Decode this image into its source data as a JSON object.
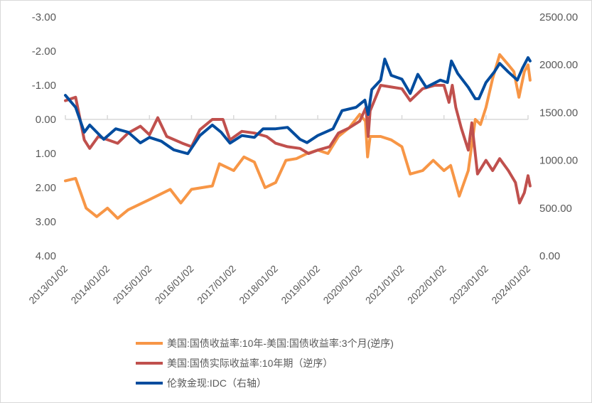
{
  "chart_data": {
    "type": "line",
    "title": "",
    "x_ticks": [
      "2013/01/02",
      "2014/01/02",
      "2015/01/02",
      "2016/01/02",
      "2017/01/02",
      "2018/01/02",
      "2019/01/02",
      "2020/01/02",
      "2021/01/02",
      "2022/01/02",
      "2023/01/02",
      "2024/01/02"
    ],
    "left_axis": {
      "ticks": [
        "-3.00",
        "-2.00",
        "-1.00",
        "0.00",
        "1.00",
        "2.00",
        "3.00",
        "4.00"
      ],
      "range": [
        -3,
        4
      ],
      "inverted": true
    },
    "right_axis": {
      "ticks": [
        "0.00",
        "500.00",
        "1000.00",
        "1500.00",
        "2000.00",
        "2500.00"
      ],
      "range": [
        0,
        2500
      ]
    },
    "grid": false,
    "legend_position": "bottom",
    "series": [
      {
        "name": "美国:国债收益率:10年-美国:国债收益率:3个月(逆序)",
        "axis": "left",
        "color": "#F79646",
        "points": [
          [
            "2013-01-02",
            1.8
          ],
          [
            "2013-04-01",
            1.73
          ],
          [
            "2013-07-01",
            2.6
          ],
          [
            "2013-10-01",
            2.85
          ],
          [
            "2014-01-02",
            2.6
          ],
          [
            "2014-04-01",
            2.9
          ],
          [
            "2014-07-01",
            2.65
          ],
          [
            "2015-01-02",
            2.35
          ],
          [
            "2015-07-01",
            2.05
          ],
          [
            "2015-10-01",
            2.45
          ],
          [
            "2016-01-02",
            2.05
          ],
          [
            "2016-07-01",
            1.95
          ],
          [
            "2016-09-01",
            1.3
          ],
          [
            "2017-01-02",
            1.5
          ],
          [
            "2017-04-01",
            1.1
          ],
          [
            "2017-07-01",
            1.25
          ],
          [
            "2017-10-01",
            2.0
          ],
          [
            "2018-01-02",
            1.85
          ],
          [
            "2018-04-01",
            1.2
          ],
          [
            "2018-07-01",
            1.15
          ],
          [
            "2018-10-01",
            1.0
          ],
          [
            "2019-01-02",
            0.9
          ],
          [
            "2019-04-01",
            1.0
          ],
          [
            "2019-07-01",
            0.5
          ],
          [
            "2019-10-01",
            0.25
          ],
          [
            "2020-01-02",
            -0.15
          ],
          [
            "2020-02-20",
            0.05
          ],
          [
            "2020-03-10",
            1.1
          ],
          [
            "2020-04-01",
            0.5
          ],
          [
            "2020-07-01",
            0.5
          ],
          [
            "2020-10-01",
            0.6
          ],
          [
            "2021-01-02",
            0.8
          ],
          [
            "2021-03-15",
            1.6
          ],
          [
            "2021-07-01",
            1.5
          ],
          [
            "2021-10-01",
            1.2
          ],
          [
            "2022-01-02",
            1.5
          ],
          [
            "2022-03-01",
            1.35
          ],
          [
            "2022-05-15",
            2.25
          ],
          [
            "2022-08-01",
            1.5
          ],
          [
            "2022-10-01",
            0.0
          ],
          [
            "2022-11-15",
            0.15
          ],
          [
            "2023-01-02",
            -0.35
          ],
          [
            "2023-03-01",
            -1.2
          ],
          [
            "2023-05-01",
            -1.9
          ],
          [
            "2023-07-15",
            -1.6
          ],
          [
            "2023-09-01",
            -1.4
          ],
          [
            "2023-10-15",
            -0.65
          ],
          [
            "2023-12-01",
            -1.4
          ],
          [
            "2024-01-02",
            -1.6
          ],
          [
            "2024-01-20",
            -1.15
          ]
        ]
      },
      {
        "name": "美国:国债实际收益率:10年期（逆序）",
        "axis": "left",
        "color": "#C0504D",
        "points": [
          [
            "2013-01-02",
            -0.55
          ],
          [
            "2013-04-01",
            -0.65
          ],
          [
            "2013-06-15",
            0.6
          ],
          [
            "2013-08-01",
            0.85
          ],
          [
            "2013-10-15",
            0.5
          ],
          [
            "2014-04-01",
            0.7
          ],
          [
            "2014-07-01",
            0.4
          ],
          [
            "2014-10-15",
            0.2
          ],
          [
            "2015-01-02",
            0.45
          ],
          [
            "2015-03-15",
            -0.05
          ],
          [
            "2015-06-01",
            0.5
          ],
          [
            "2015-10-15",
            0.7
          ],
          [
            "2016-01-02",
            0.8
          ],
          [
            "2016-03-15",
            0.3
          ],
          [
            "2016-07-01",
            0.0
          ],
          [
            "2016-10-01",
            0.0
          ],
          [
            "2016-12-01",
            0.6
          ],
          [
            "2017-03-15",
            0.35
          ],
          [
            "2017-07-01",
            0.4
          ],
          [
            "2017-10-15",
            0.5
          ],
          [
            "2018-01-02",
            0.7
          ],
          [
            "2018-04-15",
            0.8
          ],
          [
            "2018-08-01",
            0.85
          ],
          [
            "2018-10-15",
            1.0
          ],
          [
            "2019-01-02",
            0.9
          ],
          [
            "2019-04-15",
            0.8
          ],
          [
            "2019-07-01",
            0.4
          ],
          [
            "2019-10-01",
            0.25
          ],
          [
            "2020-01-02",
            0.05
          ],
          [
            "2020-02-25",
            -0.35
          ],
          [
            "2020-03-15",
            0.5
          ],
          [
            "2020-04-01",
            -0.25
          ],
          [
            "2020-07-01",
            -1.0
          ],
          [
            "2020-10-01",
            -0.95
          ],
          [
            "2021-01-02",
            -0.9
          ],
          [
            "2021-03-15",
            -0.55
          ],
          [
            "2021-07-01",
            -0.9
          ],
          [
            "2021-10-15",
            -1.0
          ],
          [
            "2022-01-02",
            -1.0
          ],
          [
            "2022-02-15",
            -0.5
          ],
          [
            "2022-03-15",
            -1.0
          ],
          [
            "2022-04-15",
            -0.35
          ],
          [
            "2022-06-01",
            0.25
          ],
          [
            "2022-08-01",
            0.9
          ],
          [
            "2022-09-01",
            0.1
          ],
          [
            "2022-10-20",
            1.6
          ],
          [
            "2023-01-02",
            1.2
          ],
          [
            "2023-03-01",
            1.5
          ],
          [
            "2023-05-01",
            1.15
          ],
          [
            "2023-07-15",
            1.5
          ],
          [
            "2023-09-15",
            1.85
          ],
          [
            "2023-10-20",
            2.45
          ],
          [
            "2023-12-01",
            2.15
          ],
          [
            "2024-01-02",
            1.65
          ],
          [
            "2024-01-20",
            1.95
          ]
        ]
      },
      {
        "name": "伦敦金现:IDC（右轴）",
        "axis": "right",
        "color": "#004C9E",
        "points": [
          [
            "2013-01-02",
            1681
          ],
          [
            "2013-04-01",
            1555
          ],
          [
            "2013-06-15",
            1295
          ],
          [
            "2013-08-01",
            1370
          ],
          [
            "2013-12-01",
            1220
          ],
          [
            "2014-03-15",
            1330
          ],
          [
            "2014-07-01",
            1295
          ],
          [
            "2014-10-15",
            1183
          ],
          [
            "2015-01-02",
            1240
          ],
          [
            "2015-04-15",
            1200
          ],
          [
            "2015-08-01",
            1110
          ],
          [
            "2015-12-01",
            1070
          ],
          [
            "2016-03-15",
            1260
          ],
          [
            "2016-07-01",
            1370
          ],
          [
            "2016-09-15",
            1295
          ],
          [
            "2016-12-01",
            1180
          ],
          [
            "2017-03-15",
            1260
          ],
          [
            "2017-07-01",
            1240
          ],
          [
            "2017-09-15",
            1330
          ],
          [
            "2018-01-02",
            1330
          ],
          [
            "2018-04-15",
            1345
          ],
          [
            "2018-08-01",
            1220
          ],
          [
            "2018-10-01",
            1185
          ],
          [
            "2019-01-02",
            1260
          ],
          [
            "2019-05-15",
            1330
          ],
          [
            "2019-08-01",
            1520
          ],
          [
            "2019-12-01",
            1555
          ],
          [
            "2020-02-15",
            1630
          ],
          [
            "2020-03-15",
            1480
          ],
          [
            "2020-04-15",
            1740
          ],
          [
            "2020-07-01",
            1840
          ],
          [
            "2020-08-06",
            2060
          ],
          [
            "2020-10-01",
            1890
          ],
          [
            "2021-01-02",
            1850
          ],
          [
            "2021-03-15",
            1700
          ],
          [
            "2021-05-20",
            1900
          ],
          [
            "2021-08-01",
            1765
          ],
          [
            "2021-12-01",
            1840
          ],
          [
            "2022-02-01",
            1815
          ],
          [
            "2022-03-08",
            2040
          ],
          [
            "2022-05-01",
            1910
          ],
          [
            "2022-08-01",
            1765
          ],
          [
            "2022-10-01",
            1645
          ],
          [
            "2022-11-01",
            1645
          ],
          [
            "2023-01-02",
            1815
          ],
          [
            "2023-03-15",
            1925
          ],
          [
            "2023-05-01",
            2015
          ],
          [
            "2023-07-15",
            1925
          ],
          [
            "2023-10-01",
            1840
          ],
          [
            "2023-11-15",
            1965
          ],
          [
            "2024-01-02",
            2075
          ],
          [
            "2024-01-20",
            2040
          ]
        ]
      }
    ]
  }
}
